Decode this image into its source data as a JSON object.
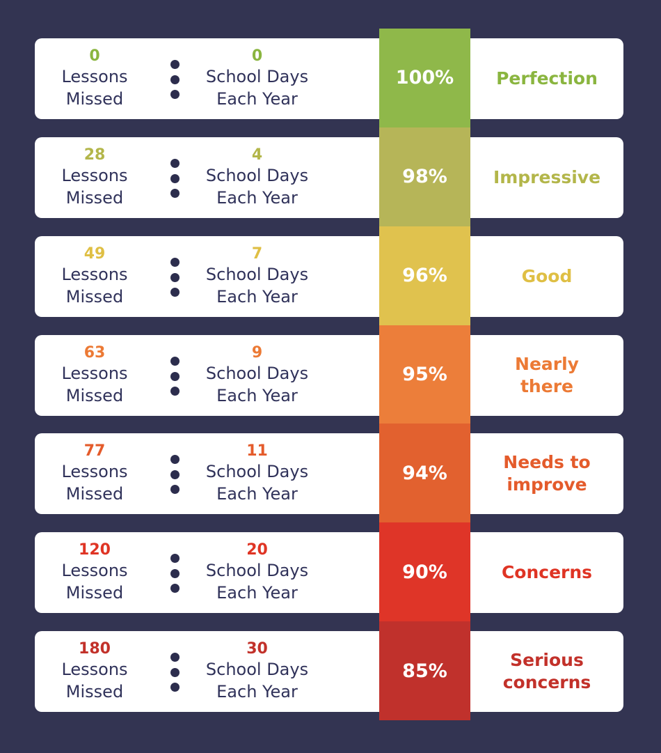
{
  "rows": [
    {
      "lessons": "0",
      "lessons_label": [
        "Lessons",
        "Missed"
      ],
      "days": "0",
      "days_label": [
        "School Days",
        "Each Year"
      ],
      "percent": "100%",
      "rating": "Perfection",
      "color": "#8ab53f",
      "bar_color": "#8fb84a"
    },
    {
      "lessons": "28",
      "lessons_label": [
        "Lessons",
        "Missed"
      ],
      "days": "4",
      "days_label": [
        "School Days",
        "Each Year"
      ],
      "percent": "98%",
      "rating": "Impressive",
      "color": "#b3b64a",
      "bar_color": "#b6b558"
    },
    {
      "lessons": "49",
      "lessons_label": [
        "Lessons",
        "Missed"
      ],
      "days": "7",
      "days_label": [
        "School Days",
        "Each Year"
      ],
      "percent": "96%",
      "rating": "Good",
      "color": "#dfbf44",
      "bar_color": "#e0c24e"
    },
    {
      "lessons": "63",
      "lessons_label": [
        "Lessons",
        "Missed"
      ],
      "days": "9",
      "days_label": [
        "School Days",
        "Each Year"
      ],
      "percent": "95%",
      "rating": "Nearly there",
      "color": "#ec7a35",
      "bar_color": "#ec7e3a"
    },
    {
      "lessons": "77",
      "lessons_label": [
        "Lessons",
        "Missed"
      ],
      "days": "11",
      "days_label": [
        "School Days",
        "Each Year"
      ],
      "percent": "94%",
      "rating": "Needs to improve",
      "color": "#e45b2b",
      "bar_color": "#e2612f"
    },
    {
      "lessons": "120",
      "lessons_label": [
        "Lessons",
        "Missed"
      ],
      "days": "20",
      "days_label": [
        "School Days",
        "Each Year"
      ],
      "percent": "90%",
      "rating": "Concerns",
      "color": "#df3424",
      "bar_color": "#df3528"
    },
    {
      "lessons": "180",
      "lessons_label": [
        "Lessons",
        "Missed"
      ],
      "days": "30",
      "days_label": [
        "School Days",
        "Each Year"
      ],
      "percent": "85%",
      "rating": "Serious concerns",
      "color": "#c2312a",
      "bar_color": "#c0312c"
    }
  ],
  "rating_lines": [
    [
      "Perfection"
    ],
    [
      "Impressive"
    ],
    [
      "Good"
    ],
    [
      "Nearly",
      "there"
    ],
    [
      "Needs to",
      "improve"
    ],
    [
      "Concerns"
    ],
    [
      "Serious",
      "concerns"
    ]
  ],
  "colors": {
    "background": "#333452",
    "label_text": "#30325a",
    "dots": "#2c2d4d"
  }
}
